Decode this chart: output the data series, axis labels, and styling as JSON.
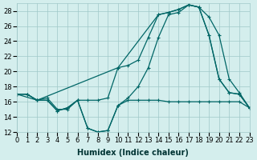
{
  "xlabel": "Humidex (Indice chaleur)",
  "ylabel": "",
  "xlim": [
    0,
    23
  ],
  "ylim": [
    12,
    29
  ],
  "yticks": [
    12,
    14,
    16,
    18,
    20,
    22,
    24,
    26,
    28
  ],
  "xticks": [
    0,
    1,
    2,
    3,
    4,
    5,
    6,
    7,
    8,
    9,
    10,
    11,
    12,
    13,
    14,
    15,
    16,
    17,
    18,
    19,
    20,
    21,
    22,
    23
  ],
  "bg_color": "#d4eeed",
  "grid_color": "#a0c8c8",
  "line_color": "#006666",
  "series1_x": [
    0,
    1,
    2,
    3,
    4,
    5,
    6,
    7,
    8,
    9,
    10,
    11,
    12,
    13,
    14,
    15,
    16,
    17,
    18,
    19,
    20,
    21,
    22,
    23
  ],
  "series1_y": [
    17,
    17,
    16.2,
    16.2,
    14.8,
    15.2,
    16.2,
    12.5,
    12.0,
    12.2,
    15.5,
    16.2,
    16.2,
    16.2,
    16.2,
    16.0,
    16.0,
    16.0,
    16.0,
    16.0,
    16.0,
    16.0,
    16.0,
    15.2
  ],
  "series2_x": [
    0,
    1,
    2,
    3,
    4,
    5,
    6,
    7,
    8,
    9,
    10,
    11,
    12,
    13,
    14,
    15,
    16,
    17,
    18,
    19,
    20,
    21,
    22,
    23
  ],
  "series2_y": [
    17,
    17,
    16.2,
    16.5,
    15.0,
    15.0,
    16.2,
    16.2,
    16.2,
    16.5,
    20.5,
    20.8,
    21.5,
    24.5,
    27.5,
    27.8,
    28.2,
    28.8,
    28.5,
    24.8,
    19.0,
    17.2,
    17.0,
    15.2
  ],
  "series3_x": [
    0,
    2,
    10,
    14,
    15,
    16,
    17,
    18,
    19,
    20,
    21,
    22,
    23
  ],
  "series3_y": [
    17,
    16.2,
    20.5,
    27.5,
    27.8,
    28.2,
    28.8,
    28.5,
    27.2,
    24.8,
    19.0,
    17.2,
    15.2
  ],
  "series4_x": [
    0,
    1,
    2,
    3,
    4,
    5,
    6,
    7,
    8,
    9,
    10,
    11,
    12,
    13,
    14,
    15,
    16,
    17,
    18,
    19,
    20,
    21,
    22,
    23
  ],
  "series4_y": [
    17,
    17,
    16.2,
    16.2,
    14.8,
    15.2,
    16.2,
    12.5,
    12.0,
    12.2,
    15.5,
    16.5,
    18.0,
    20.5,
    24.5,
    27.5,
    27.8,
    28.8,
    28.5,
    24.8,
    19.0,
    17.2,
    17.0,
    15.2
  ]
}
